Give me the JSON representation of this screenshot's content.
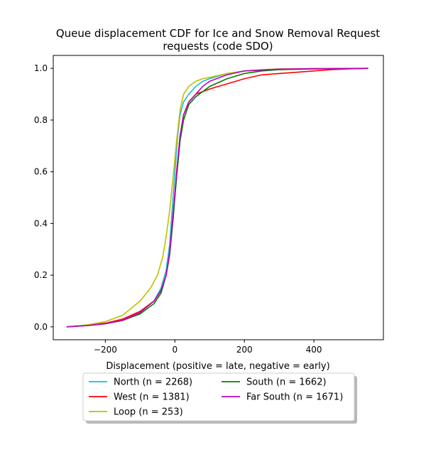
{
  "chart_data": {
    "type": "line",
    "title": "Queue displacement CDF for Ice and Snow Removal Request requests (code SDO)",
    "title_lines": [
      "Queue displacement CDF for Ice and Snow Removal Request",
      "requests (code SDO)"
    ],
    "xlabel": "Displacement (positive = late, negative = early)",
    "ylabel": "",
    "xlim": [
      -350,
      600
    ],
    "ylim": [
      -0.05,
      1.05
    ],
    "xticks": [
      -200,
      0,
      200,
      400
    ],
    "xtick_labels": [
      "−200",
      "0",
      "200",
      "400"
    ],
    "yticks": [
      0.0,
      0.2,
      0.4,
      0.6,
      0.8,
      1.0
    ],
    "ytick_labels": [
      "0.0",
      "0.2",
      "0.4",
      "0.6",
      "0.8",
      "1.0"
    ],
    "grid": false,
    "legend_position": "below-center",
    "legend_columns": 2,
    "series": [
      {
        "name": "North (n = 2268)",
        "color": "#17becf",
        "points": [
          [
            -310,
            0.0
          ],
          [
            -250,
            0.005
          ],
          [
            -200,
            0.012
          ],
          [
            -150,
            0.025
          ],
          [
            -100,
            0.055
          ],
          [
            -60,
            0.1
          ],
          [
            -40,
            0.15
          ],
          [
            -25,
            0.22
          ],
          [
            -15,
            0.32
          ],
          [
            -8,
            0.45
          ],
          [
            0,
            0.6
          ],
          [
            8,
            0.74
          ],
          [
            15,
            0.82
          ],
          [
            25,
            0.87
          ],
          [
            40,
            0.9
          ],
          [
            60,
            0.93
          ],
          [
            80,
            0.95
          ],
          [
            100,
            0.96
          ],
          [
            150,
            0.98
          ],
          [
            200,
            0.99
          ],
          [
            300,
            0.995
          ],
          [
            400,
            0.998
          ],
          [
            555,
            1.0
          ]
        ]
      },
      {
        "name": "West (n = 1381)",
        "color": "#ff0000",
        "points": [
          [
            -310,
            0.0
          ],
          [
            -250,
            0.006
          ],
          [
            -200,
            0.014
          ],
          [
            -150,
            0.03
          ],
          [
            -100,
            0.06
          ],
          [
            -60,
            0.1
          ],
          [
            -40,
            0.14
          ],
          [
            -25,
            0.2
          ],
          [
            -15,
            0.28
          ],
          [
            -5,
            0.42
          ],
          [
            5,
            0.6
          ],
          [
            15,
            0.74
          ],
          [
            25,
            0.82
          ],
          [
            40,
            0.87
          ],
          [
            60,
            0.9
          ],
          [
            80,
            0.91
          ],
          [
            100,
            0.92
          ],
          [
            150,
            0.94
          ],
          [
            200,
            0.96
          ],
          [
            250,
            0.975
          ],
          [
            300,
            0.98
          ],
          [
            350,
            0.985
          ],
          [
            400,
            0.99
          ],
          [
            450,
            0.995
          ],
          [
            500,
            0.998
          ],
          [
            555,
            1.0
          ]
        ]
      },
      {
        "name": "Loop (n = 253)",
        "color": "#bfbf00",
        "points": [
          [
            -310,
            0.0
          ],
          [
            -250,
            0.008
          ],
          [
            -200,
            0.02
          ],
          [
            -150,
            0.045
          ],
          [
            -100,
            0.1
          ],
          [
            -70,
            0.15
          ],
          [
            -50,
            0.2
          ],
          [
            -35,
            0.27
          ],
          [
            -25,
            0.35
          ],
          [
            -15,
            0.45
          ],
          [
            -5,
            0.58
          ],
          [
            5,
            0.72
          ],
          [
            15,
            0.84
          ],
          [
            25,
            0.9
          ],
          [
            40,
            0.93
          ],
          [
            60,
            0.95
          ],
          [
            80,
            0.96
          ],
          [
            100,
            0.965
          ],
          [
            150,
            0.98
          ],
          [
            200,
            0.99
          ],
          [
            250,
            0.995
          ],
          [
            300,
            0.998
          ],
          [
            555,
            1.0
          ]
        ]
      },
      {
        "name": "South (n = 1662)",
        "color": "#008000",
        "points": [
          [
            -310,
            0.0
          ],
          [
            -250,
            0.005
          ],
          [
            -200,
            0.012
          ],
          [
            -150,
            0.025
          ],
          [
            -100,
            0.05
          ],
          [
            -60,
            0.09
          ],
          [
            -40,
            0.13
          ],
          [
            -25,
            0.2
          ],
          [
            -15,
            0.28
          ],
          [
            -5,
            0.42
          ],
          [
            5,
            0.58
          ],
          [
            15,
            0.72
          ],
          [
            25,
            0.8
          ],
          [
            40,
            0.86
          ],
          [
            60,
            0.89
          ],
          [
            80,
            0.91
          ],
          [
            100,
            0.93
          ],
          [
            150,
            0.96
          ],
          [
            200,
            0.98
          ],
          [
            250,
            0.99
          ],
          [
            300,
            0.995
          ],
          [
            400,
            0.998
          ],
          [
            555,
            1.0
          ]
        ]
      },
      {
        "name": "Far South (n = 1671)",
        "color": "#bf00bf",
        "points": [
          [
            -310,
            0.0
          ],
          [
            -250,
            0.005
          ],
          [
            -200,
            0.012
          ],
          [
            -150,
            0.025
          ],
          [
            -100,
            0.055
          ],
          [
            -60,
            0.1
          ],
          [
            -40,
            0.14
          ],
          [
            -25,
            0.2
          ],
          [
            -15,
            0.29
          ],
          [
            -5,
            0.44
          ],
          [
            5,
            0.6
          ],
          [
            15,
            0.74
          ],
          [
            25,
            0.82
          ],
          [
            40,
            0.87
          ],
          [
            60,
            0.9
          ],
          [
            80,
            0.93
          ],
          [
            100,
            0.95
          ],
          [
            150,
            0.975
          ],
          [
            200,
            0.99
          ],
          [
            300,
            0.997
          ],
          [
            400,
            0.999
          ],
          [
            555,
            1.0
          ]
        ]
      }
    ]
  }
}
